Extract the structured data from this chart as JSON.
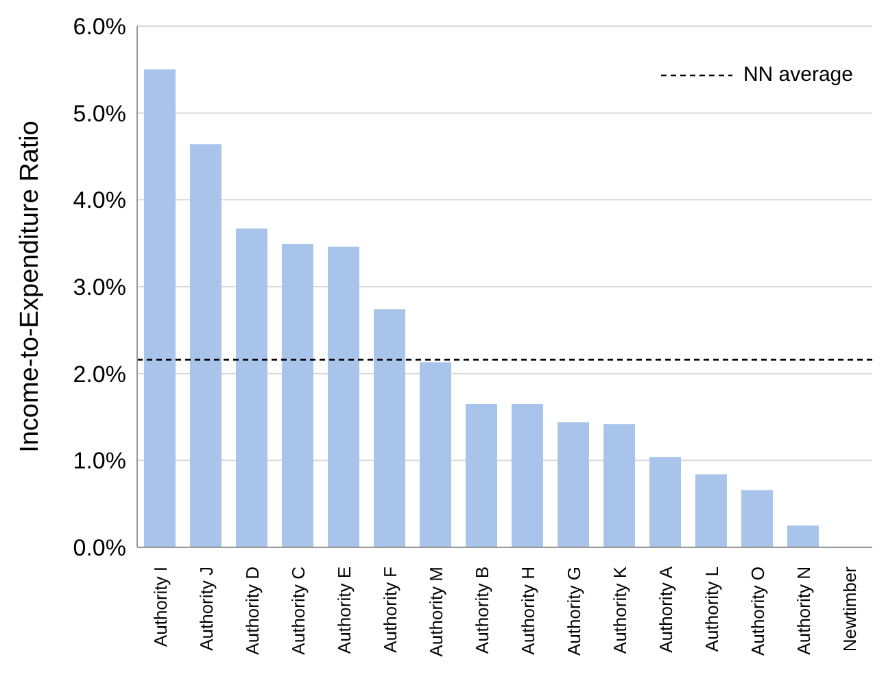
{
  "chart_data": {
    "type": "bar",
    "ylabel": "Income-to-Expenditure Ratio",
    "categories": [
      "Authority I",
      "Authority J",
      "Authority D",
      "Authority C",
      "Authority E",
      "Authority F",
      "Authority M",
      "Authority B",
      "Authority H",
      "Authority G",
      "Authority K",
      "Authority A",
      "Authority L",
      "Authority O",
      "Authority N",
      "Newtimber"
    ],
    "values": [
      5.5,
      4.64,
      3.67,
      3.49,
      3.46,
      2.74,
      2.13,
      1.65,
      1.65,
      1.44,
      1.42,
      1.04,
      0.84,
      0.66,
      0.25,
      0
    ],
    "color": "#a9c4ea",
    "ylim": [
      0,
      6
    ],
    "yticks": [
      {
        "value": 0,
        "label": "0.0%"
      },
      {
        "value": 1,
        "label": "1.0%"
      },
      {
        "value": 2,
        "label": "2.0%"
      },
      {
        "value": 3,
        "label": "3.0%"
      },
      {
        "value": 4,
        "label": "4.0%"
      },
      {
        "value": 5,
        "label": "5.0%"
      },
      {
        "value": 6,
        "label": "6.0%"
      }
    ],
    "grid": "y",
    "legend": "top right",
    "ref_lines": [
      {
        "axis": "y",
        "value": 2.16,
        "label": "NN average",
        "color": "#000000",
        "line_style": "dashed"
      }
    ]
  }
}
